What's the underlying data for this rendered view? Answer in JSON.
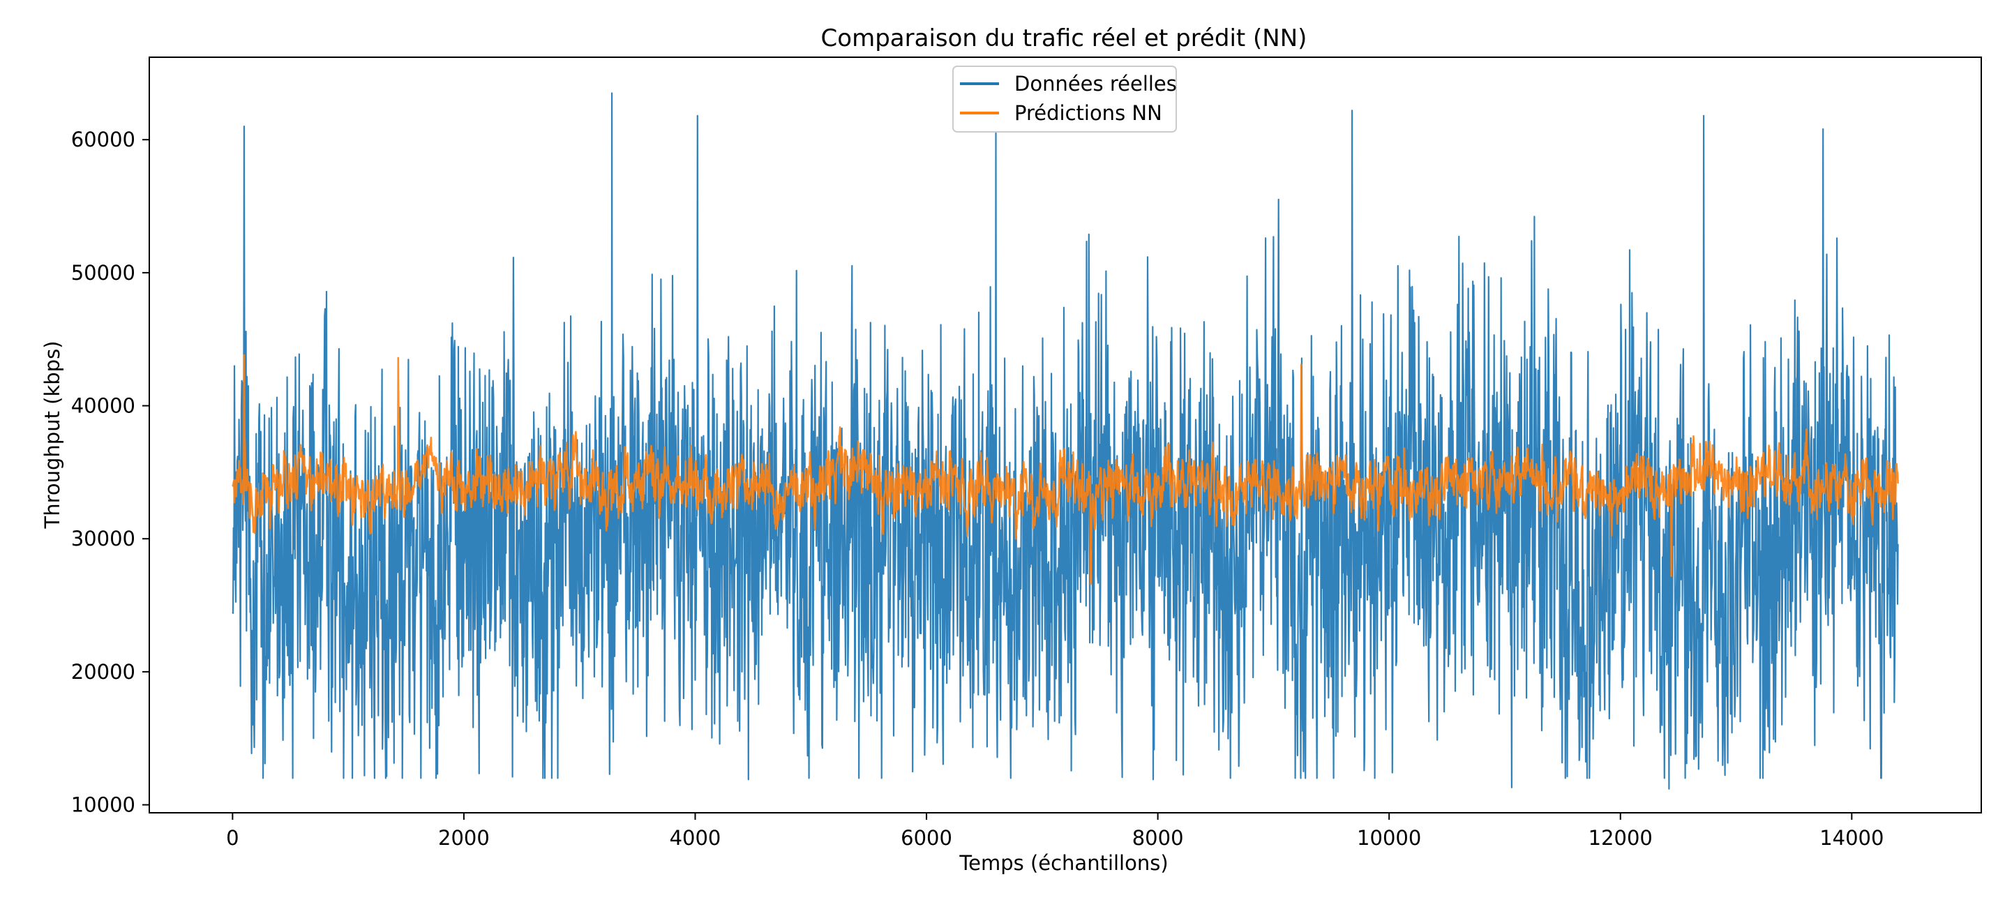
{
  "chart_data": {
    "type": "line",
    "title": "Comparaison du trafic réel et prédit (NN)",
    "xlabel": "Temps (échantillons)",
    "ylabel": "Throughput (kbps)",
    "xlim": [
      -720,
      15120
    ],
    "ylim": [
      9400,
      66200
    ],
    "xticks": [
      0,
      2000,
      4000,
      6000,
      8000,
      10000,
      12000,
      14000
    ],
    "xtick_labels": [
      "0",
      "2000",
      "4000",
      "6000",
      "8000",
      "10000",
      "12000",
      "14000"
    ],
    "yticks": [
      10000,
      20000,
      30000,
      40000,
      50000,
      60000
    ],
    "ytick_labels": [
      "10000",
      "20000",
      "30000",
      "40000",
      "50000",
      "60000"
    ],
    "grid": false,
    "legend_position": "upper-center",
    "n_samples": 14400,
    "series": [
      {
        "name": "Données réelles",
        "color": "#1f77b4",
        "mean": 30000,
        "min": 11200,
        "max": 63500,
        "peaks": [
          [
            100,
            61000
          ],
          [
            3280,
            63500
          ],
          [
            4020,
            61800
          ],
          [
            6600,
            60500
          ],
          [
            9680,
            62200
          ],
          [
            12720,
            61800
          ],
          [
            13750,
            60800
          ],
          [
            12420,
            11200
          ],
          [
            11060,
            11300
          ],
          [
            4460,
            11900
          ],
          [
            2420,
            12100
          ],
          [
            7960,
            11900
          ]
        ]
      },
      {
        "name": "Prédictions NN",
        "color": "#ff7f0e",
        "mean": 34000,
        "min": 26500,
        "max": 44000,
        "peaks": [
          [
            100,
            43800
          ],
          [
            1430,
            43600
          ],
          [
            7420,
            26600
          ],
          [
            9240,
            43100
          ],
          [
            12440,
            27200
          ]
        ]
      }
    ]
  }
}
